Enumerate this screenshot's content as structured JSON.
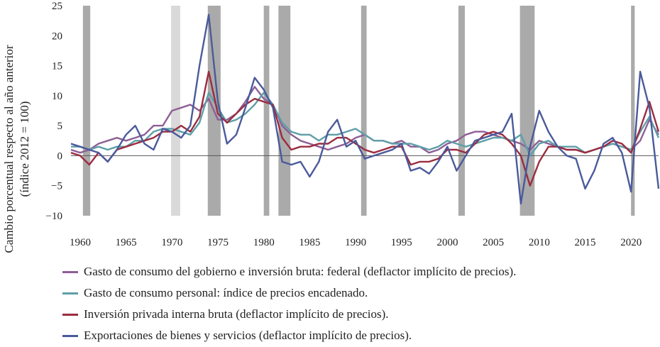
{
  "chart_data": {
    "type": "line",
    "title": "",
    "ylabel": "Cambio porcentual respecto al año anterior (índice 2012 = 100)",
    "ylabel_lines": [
      "Cambio porcentual respecto al año anterior",
      "(índice 2012 = 100)"
    ],
    "xlabel": "",
    "xlim": [
      1959,
      2023
    ],
    "ylim": [
      -10,
      25
    ],
    "yticks": [
      -10,
      -5,
      0,
      5,
      10,
      15,
      20,
      25
    ],
    "ytick_labels": [
      "−10",
      "−5",
      "0",
      "5",
      "10",
      "15",
      "20",
      "25"
    ],
    "xticks": [
      1960,
      1965,
      1970,
      1975,
      1980,
      1985,
      1990,
      1995,
      2000,
      2005,
      2010,
      2015,
      2020
    ],
    "xtick_labels": [
      "1960",
      "1965",
      "1970",
      "1975",
      "1980",
      "1985",
      "1990",
      "1995",
      "2000",
      "2005",
      "2010",
      "2015",
      "2020"
    ],
    "recessions": [
      {
        "start": 1960.3,
        "end": 1961.1,
        "shade": "#aaaaaa"
      },
      {
        "start": 1969.9,
        "end": 1970.9,
        "shade": "#d9d9d9"
      },
      {
        "start": 1973.9,
        "end": 1975.3,
        "shade": "#aaaaaa"
      },
      {
        "start": 1980.0,
        "end": 1980.6,
        "shade": "#aaaaaa"
      },
      {
        "start": 1981.6,
        "end": 1982.9,
        "shade": "#aaaaaa"
      },
      {
        "start": 1990.6,
        "end": 1991.2,
        "shade": "#aaaaaa"
      },
      {
        "start": 2001.2,
        "end": 2001.9,
        "shade": "#aaaaaa"
      },
      {
        "start": 2007.9,
        "end": 2009.5,
        "shade": "#aaaaaa"
      },
      {
        "start": 2020.0,
        "end": 2020.4,
        "shade": "#aaaaaa"
      }
    ],
    "series": [
      {
        "name": "Gasto de consumo del gobierno e inversión bruta: federal (deflactor implícito de precios).",
        "color": "#8e5e96",
        "x": [
          1959,
          1960,
          1961,
          1962,
          1963,
          1964,
          1965,
          1966,
          1967,
          1968,
          1969,
          1970,
          1971,
          1972,
          1973,
          1974,
          1975,
          1976,
          1977,
          1978,
          1979,
          1980,
          1981,
          1982,
          1983,
          1984,
          1985,
          1986,
          1987,
          1988,
          1989,
          1990,
          1991,
          1992,
          1993,
          1994,
          1995,
          1996,
          1997,
          1998,
          1999,
          2000,
          2001,
          2002,
          2003,
          2004,
          2005,
          2006,
          2007,
          2008,
          2009,
          2010,
          2011,
          2012,
          2013,
          2014,
          2015,
          2016,
          2017,
          2018,
          2019,
          2020,
          2021,
          2022,
          2023
        ],
        "values": [
          1.0,
          0.5,
          1.0,
          2.0,
          2.5,
          3.0,
          2.5,
          3.0,
          3.5,
          5.0,
          5.0,
          7.5,
          8.0,
          8.5,
          7.5,
          9.5,
          6.0,
          6.0,
          7.0,
          9.0,
          11.5,
          9.5,
          8.5,
          5.0,
          3.5,
          2.5,
          2.0,
          1.5,
          1.0,
          1.5,
          2.0,
          3.0,
          3.5,
          2.5,
          2.5,
          2.0,
          2.5,
          1.5,
          1.5,
          0.5,
          1.0,
          2.0,
          2.5,
          3.5,
          4.0,
          4.0,
          3.5,
          3.0,
          2.5,
          2.0,
          1.0,
          2.5,
          2.0,
          1.5,
          1.0,
          1.0,
          0.5,
          1.0,
          1.5,
          2.0,
          1.5,
          1.0,
          2.5,
          6.0,
          3.5
        ]
      },
      {
        "name": "Gasto de consumo personal: índice de precios encadenado.",
        "color": "#5e9fa8",
        "x": [
          1959,
          1960,
          1961,
          1962,
          1963,
          1964,
          1965,
          1966,
          1967,
          1968,
          1969,
          1970,
          1971,
          1972,
          1973,
          1974,
          1975,
          1976,
          1977,
          1978,
          1979,
          1980,
          1981,
          1982,
          1983,
          1984,
          1985,
          1986,
          1987,
          1988,
          1989,
          1990,
          1991,
          1992,
          1993,
          1994,
          1995,
          1996,
          1997,
          1998,
          1999,
          2000,
          2001,
          2002,
          2003,
          2004,
          2005,
          2006,
          2007,
          2008,
          2009,
          2010,
          2011,
          2012,
          2013,
          2014,
          2015,
          2016,
          2017,
          2018,
          2019,
          2020,
          2021,
          2022,
          2023
        ],
        "values": [
          1.5,
          1.5,
          1.0,
          1.5,
          1.0,
          1.5,
          1.5,
          2.5,
          2.5,
          4.0,
          4.5,
          4.5,
          4.0,
          3.5,
          5.5,
          10.5,
          8.0,
          5.5,
          6.0,
          7.0,
          8.5,
          10.5,
          8.5,
          5.5,
          4.0,
          3.5,
          3.5,
          2.5,
          3.5,
          3.5,
          4.0,
          4.5,
          3.5,
          2.5,
          2.5,
          2.0,
          2.0,
          2.0,
          1.5,
          1.0,
          1.5,
          2.5,
          2.0,
          1.5,
          2.0,
          2.5,
          3.0,
          3.0,
          2.5,
          3.5,
          0.0,
          2.0,
          2.5,
          1.5,
          1.5,
          1.5,
          0.5,
          1.0,
          1.5,
          2.0,
          1.5,
          1.0,
          4.0,
          6.5,
          3.0
        ]
      },
      {
        "name": "Inversión privada interna bruta (deflactor implícito de precios).",
        "color": "#9b2d3f",
        "x": [
          1959,
          1960,
          1961,
          1962,
          1963,
          1964,
          1965,
          1966,
          1967,
          1968,
          1969,
          1970,
          1971,
          1972,
          1973,
          1974,
          1975,
          1976,
          1977,
          1978,
          1979,
          1980,
          1981,
          1982,
          1983,
          1984,
          1985,
          1986,
          1987,
          1988,
          1989,
          1990,
          1991,
          1992,
          1993,
          1994,
          1995,
          1996,
          1997,
          1998,
          1999,
          2000,
          2001,
          2002,
          2003,
          2004,
          2005,
          2006,
          2007,
          2008,
          2009,
          2010,
          2011,
          2012,
          2013,
          2014,
          2015,
          2016,
          2017,
          2018,
          2019,
          2020,
          2021,
          2022,
          2023
        ],
        "values": [
          0.5,
          0.0,
          -1.5,
          0.5,
          -1.0,
          1.0,
          1.5,
          2.0,
          2.5,
          3.0,
          4.0,
          4.0,
          5.0,
          4.0,
          6.5,
          14.0,
          7.0,
          5.5,
          7.0,
          8.5,
          9.5,
          9.0,
          8.5,
          3.0,
          1.0,
          1.5,
          1.5,
          2.0,
          2.0,
          3.0,
          3.0,
          2.0,
          1.0,
          0.5,
          1.0,
          1.5,
          1.5,
          -1.5,
          -1.0,
          -1.0,
          -0.5,
          1.0,
          1.0,
          0.5,
          2.0,
          3.5,
          4.0,
          3.5,
          2.0,
          0.0,
          -5.0,
          -1.0,
          1.5,
          1.5,
          1.0,
          1.0,
          0.5,
          1.0,
          1.5,
          2.5,
          2.0,
          0.5,
          4.5,
          9.0,
          4.0
        ]
      },
      {
        "name": "Exportaciones de bienes y servicios (deflactor implícito de precios).",
        "color": "#4a5a9b",
        "x": [
          1959,
          1960,
          1961,
          1962,
          1963,
          1964,
          1965,
          1966,
          1967,
          1968,
          1969,
          1970,
          1971,
          1972,
          1973,
          1974,
          1975,
          1976,
          1977,
          1978,
          1979,
          1980,
          1981,
          1982,
          1983,
          1984,
          1985,
          1986,
          1987,
          1988,
          1989,
          1990,
          1991,
          1992,
          1993,
          1994,
          1995,
          1996,
          1997,
          1998,
          1999,
          2000,
          2001,
          2002,
          2003,
          2004,
          2005,
          2006,
          2007,
          2008,
          2009,
          2010,
          2011,
          2012,
          2013,
          2014,
          2015,
          2016,
          2017,
          2018,
          2019,
          2020,
          2021,
          2022,
          2023
        ],
        "values": [
          2.0,
          1.5,
          1.0,
          0.5,
          -1.0,
          1.0,
          3.5,
          5.0,
          2.0,
          1.0,
          4.5,
          4.0,
          3.0,
          5.0,
          15.0,
          23.5,
          9.0,
          2.0,
          3.5,
          8.0,
          13.0,
          11.0,
          8.0,
          -1.0,
          -1.5,
          -1.0,
          -3.5,
          -1.0,
          4.0,
          6.0,
          1.5,
          2.5,
          -0.5,
          0.0,
          0.5,
          1.0,
          2.0,
          -2.5,
          -2.0,
          -3.0,
          -1.0,
          1.5,
          -2.5,
          0.0,
          2.5,
          3.0,
          3.5,
          4.0,
          7.0,
          -8.0,
          1.5,
          7.5,
          4.0,
          1.5,
          0.0,
          -0.5,
          -5.5,
          -2.5,
          2.0,
          3.0,
          0.5,
          -6.0,
          14.0,
          8.0,
          -5.5
        ]
      }
    ]
  }
}
